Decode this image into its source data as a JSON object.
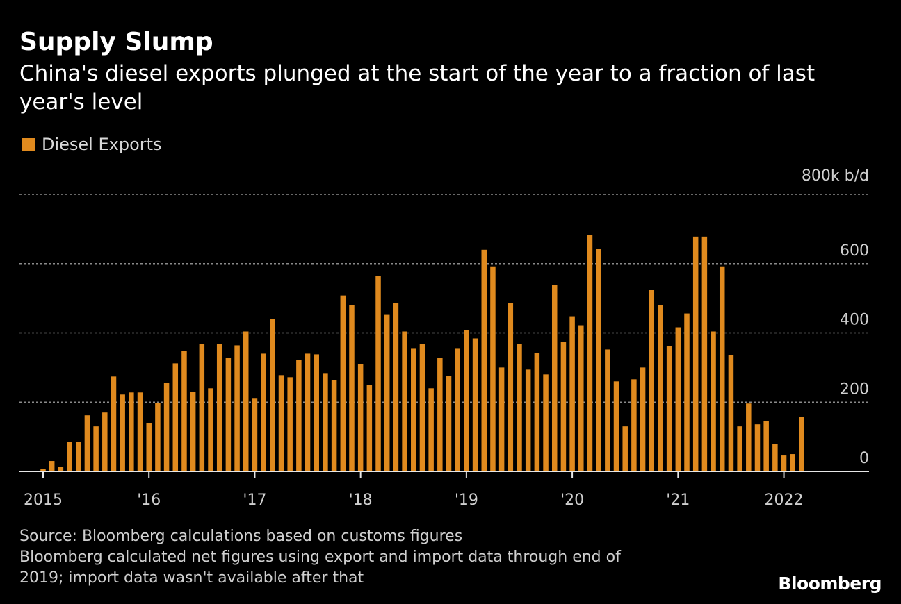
{
  "chart_data": {
    "type": "bar",
    "title": "Supply Slump",
    "subtitle": "China's diesel exports plunged at the start of the year to a fraction of last year's level",
    "legend": [
      "Diesel Exports"
    ],
    "ylabel_unit": "800k b/d",
    "y_ticks": [
      "0",
      "200",
      "400",
      "600"
    ],
    "ylim": [
      0,
      800
    ],
    "x_tick_labels": [
      "2015",
      "'16",
      "'17",
      "'18",
      "'19",
      "'20",
      "'21",
      "2022"
    ],
    "series": [
      {
        "name": "Diesel Exports",
        "color": "#e08a1e",
        "start": "2015-01",
        "values": [
          8,
          30,
          14,
          86,
          86,
          162,
          130,
          170,
          274,
          222,
          228,
          228,
          140,
          198,
          256,
          312,
          348,
          230,
          368,
          240,
          368,
          328,
          364,
          404,
          212,
          340,
          440,
          278,
          272,
          322,
          340,
          338,
          284,
          264,
          508,
          480,
          310,
          250,
          564,
          452,
          486,
          404,
          356,
          368,
          240,
          328,
          276,
          356,
          408,
          384,
          640,
          592,
          300,
          486,
          368,
          294,
          342,
          280,
          538,
          374,
          448,
          422,
          682,
          642,
          352,
          260,
          130,
          266,
          300,
          524,
          480,
          362,
          416,
          456,
          678,
          678,
          404,
          592,
          336,
          130,
          196,
          136,
          146,
          80,
          46,
          50,
          158
        ]
      }
    ]
  },
  "source_note": "Source: Bloomberg calculations based on customs figures",
  "method_note": "Bloomberg calculated net figures using export and import data through end of",
  "method_note2": "2019; import data wasn't available after that",
  "brand": "Bloomberg"
}
